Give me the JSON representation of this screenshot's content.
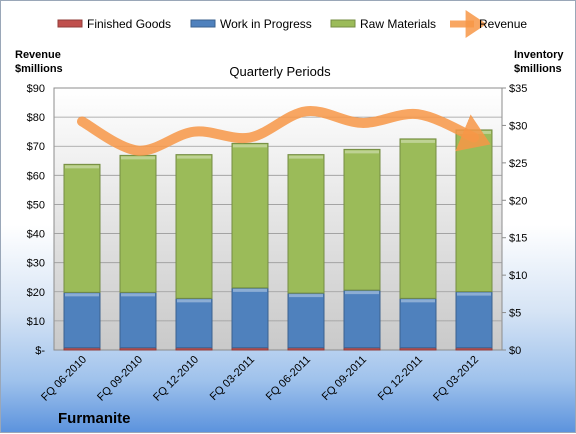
{
  "chart_data": {
    "type": "bar",
    "stacked": true,
    "title": "Quarterly Periods",
    "company": "Furmanite",
    "y_left_label": [
      "Revenue",
      "$millions"
    ],
    "y_right_label": [
      "Inventory",
      "$millions"
    ],
    "categories": [
      "FQ 06-2010",
      "FQ 09-2010",
      "FQ 12-2010",
      "FQ 03-2011",
      "FQ 06-2011",
      "FQ 09-2011",
      "FQ 12-2011",
      "FQ 03-2012"
    ],
    "y_left_ticks": [
      "$-",
      "$10",
      "$20",
      "$30",
      "$40",
      "$50",
      "$60",
      "$70",
      "$80",
      "$90"
    ],
    "y_right_ticks": [
      "$0",
      "$5",
      "$10",
      "$15",
      "$20",
      "$25",
      "$30",
      "$35"
    ],
    "ylim_left": [
      0,
      90
    ],
    "ylim_right": [
      0,
      35
    ],
    "grid": true,
    "legend_position": "top",
    "series": [
      {
        "name": "Finished Goods",
        "axis": "right",
        "kind": "bar",
        "color": "#c0504d",
        "values": [
          0.3,
          0.3,
          0.3,
          0.3,
          0.3,
          0.3,
          0.3,
          0.3
        ]
      },
      {
        "name": "Work in Progress",
        "axis": "right",
        "kind": "bar",
        "color": "#4f81bd",
        "values": [
          7.4,
          7.4,
          6.6,
          8.0,
          7.3,
          7.7,
          6.6,
          7.5
        ]
      },
      {
        "name": "Raw Materials",
        "axis": "right",
        "kind": "bar",
        "color": "#9bbb59",
        "values": [
          17.1,
          18.3,
          19.2,
          19.3,
          18.5,
          18.8,
          21.3,
          21.6
        ]
      },
      {
        "name": "Revenue",
        "axis": "left",
        "kind": "line",
        "color": "#f79646",
        "values": [
          78.5,
          68.5,
          75,
          73,
          82,
          78,
          81,
          73
        ]
      }
    ]
  }
}
